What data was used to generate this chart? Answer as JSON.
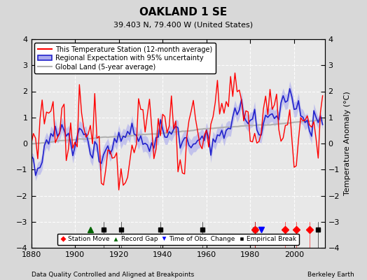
{
  "title": "OAKLAND 1 SE",
  "subtitle": "39.403 N, 79.400 W (United States)",
  "ylabel": "Temperature Anomaly (°C)",
  "footer_left": "Data Quality Controlled and Aligned at Breakpoints",
  "footer_right": "Berkeley Earth",
  "xlim": [
    1880,
    2014
  ],
  "ylim": [
    -4,
    4
  ],
  "yticks": [
    -4,
    -3,
    -2,
    -1,
    0,
    1,
    2,
    3,
    4
  ],
  "xticks": [
    1880,
    1900,
    1920,
    1940,
    1960,
    1980,
    2000
  ],
  "bg_color": "#d8d8d8",
  "plot_bg_color": "#e8e8e8",
  "grid_color": "#ffffff",
  "station_moves": [
    1982,
    1996,
    2001,
    2007
  ],
  "record_gaps": [
    1907
  ],
  "obs_changes": [
    1985
  ],
  "emp_breaks": [
    1913,
    1921,
    1939,
    1958,
    1982,
    2011
  ],
  "uncertainty_color": "#aaaaee",
  "uncertainty_alpha": 0.6,
  "station_color": "#ff0000",
  "regional_color": "#2222cc",
  "global_color": "#b0b0b0",
  "marker_y": -3.3,
  "legend_fontsize": 7.0,
  "title_fontsize": 11,
  "subtitle_fontsize": 8
}
